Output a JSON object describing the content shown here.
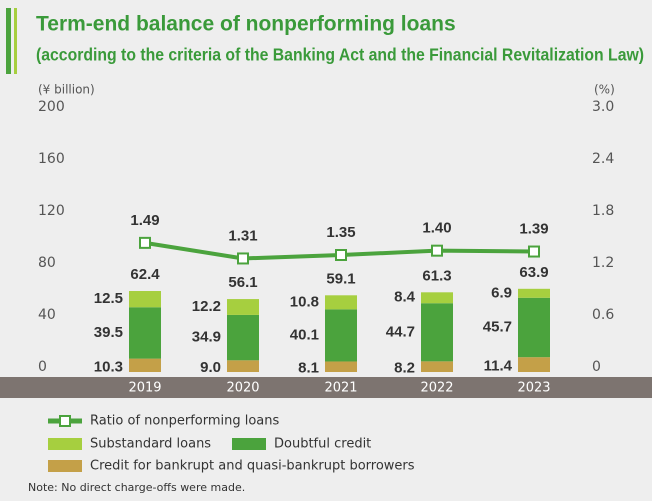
{
  "chart_data": {
    "type": "bar",
    "title": "Term-end balance of nonperforming loans",
    "subtitle": "(according to the criteria of the Banking Act and the Financial Revitalization Law)",
    "y_label": "(¥ billion)",
    "y2_label": "(%)",
    "note": "Note: No direct charge-offs were made.",
    "categories": [
      "2019",
      "2020",
      "2021",
      "2022",
      "2023"
    ],
    "series": [
      {
        "name": "Credit for bankrupt and quasi-bankrupt borrowers",
        "color": "#c4a048",
        "values": [
          10.3,
          9.0,
          8.1,
          8.2,
          11.4
        ],
        "value_labels": [
          "10.3",
          "9.0",
          "8.1",
          "8.2",
          "11.4"
        ]
      },
      {
        "name": "Doubtful credit",
        "color": "#4ba33d",
        "values": [
          39.5,
          34.9,
          40.1,
          44.7,
          45.7
        ]
      },
      {
        "name": "Substandard loans",
        "color": "#a6cf3f",
        "values": [
          12.5,
          12.2,
          10.8,
          8.4,
          6.9
        ]
      },
      {
        "name": "Ratio of nonperforming loans",
        "type": "line",
        "axis": "y2",
        "color": "#4ba33d",
        "values": [
          1.49,
          1.31,
          1.35,
          1.4,
          1.39
        ],
        "value_labels": [
          "1.49",
          "1.31",
          "1.35",
          "1.40",
          "1.39"
        ]
      }
    ],
    "totals": [
      62.4,
      56.1,
      59.1,
      61.3,
      63.9
    ],
    "ylim": [
      0,
      200
    ],
    "yticks": [
      0,
      40,
      80,
      120,
      160,
      200
    ],
    "y2lim": [
      0,
      3.0
    ],
    "y2ticks": [
      0,
      {
        "value": 0.6,
        "label": "0.6"
      },
      {
        "value": 1.2,
        "label": "1.2"
      },
      {
        "value": 1.8,
        "label": "1.8"
      },
      {
        "value": 2.4,
        "label": "2.4"
      },
      {
        "value": 3.0,
        "label": "3.0"
      }
    ],
    "grid": false
  }
}
